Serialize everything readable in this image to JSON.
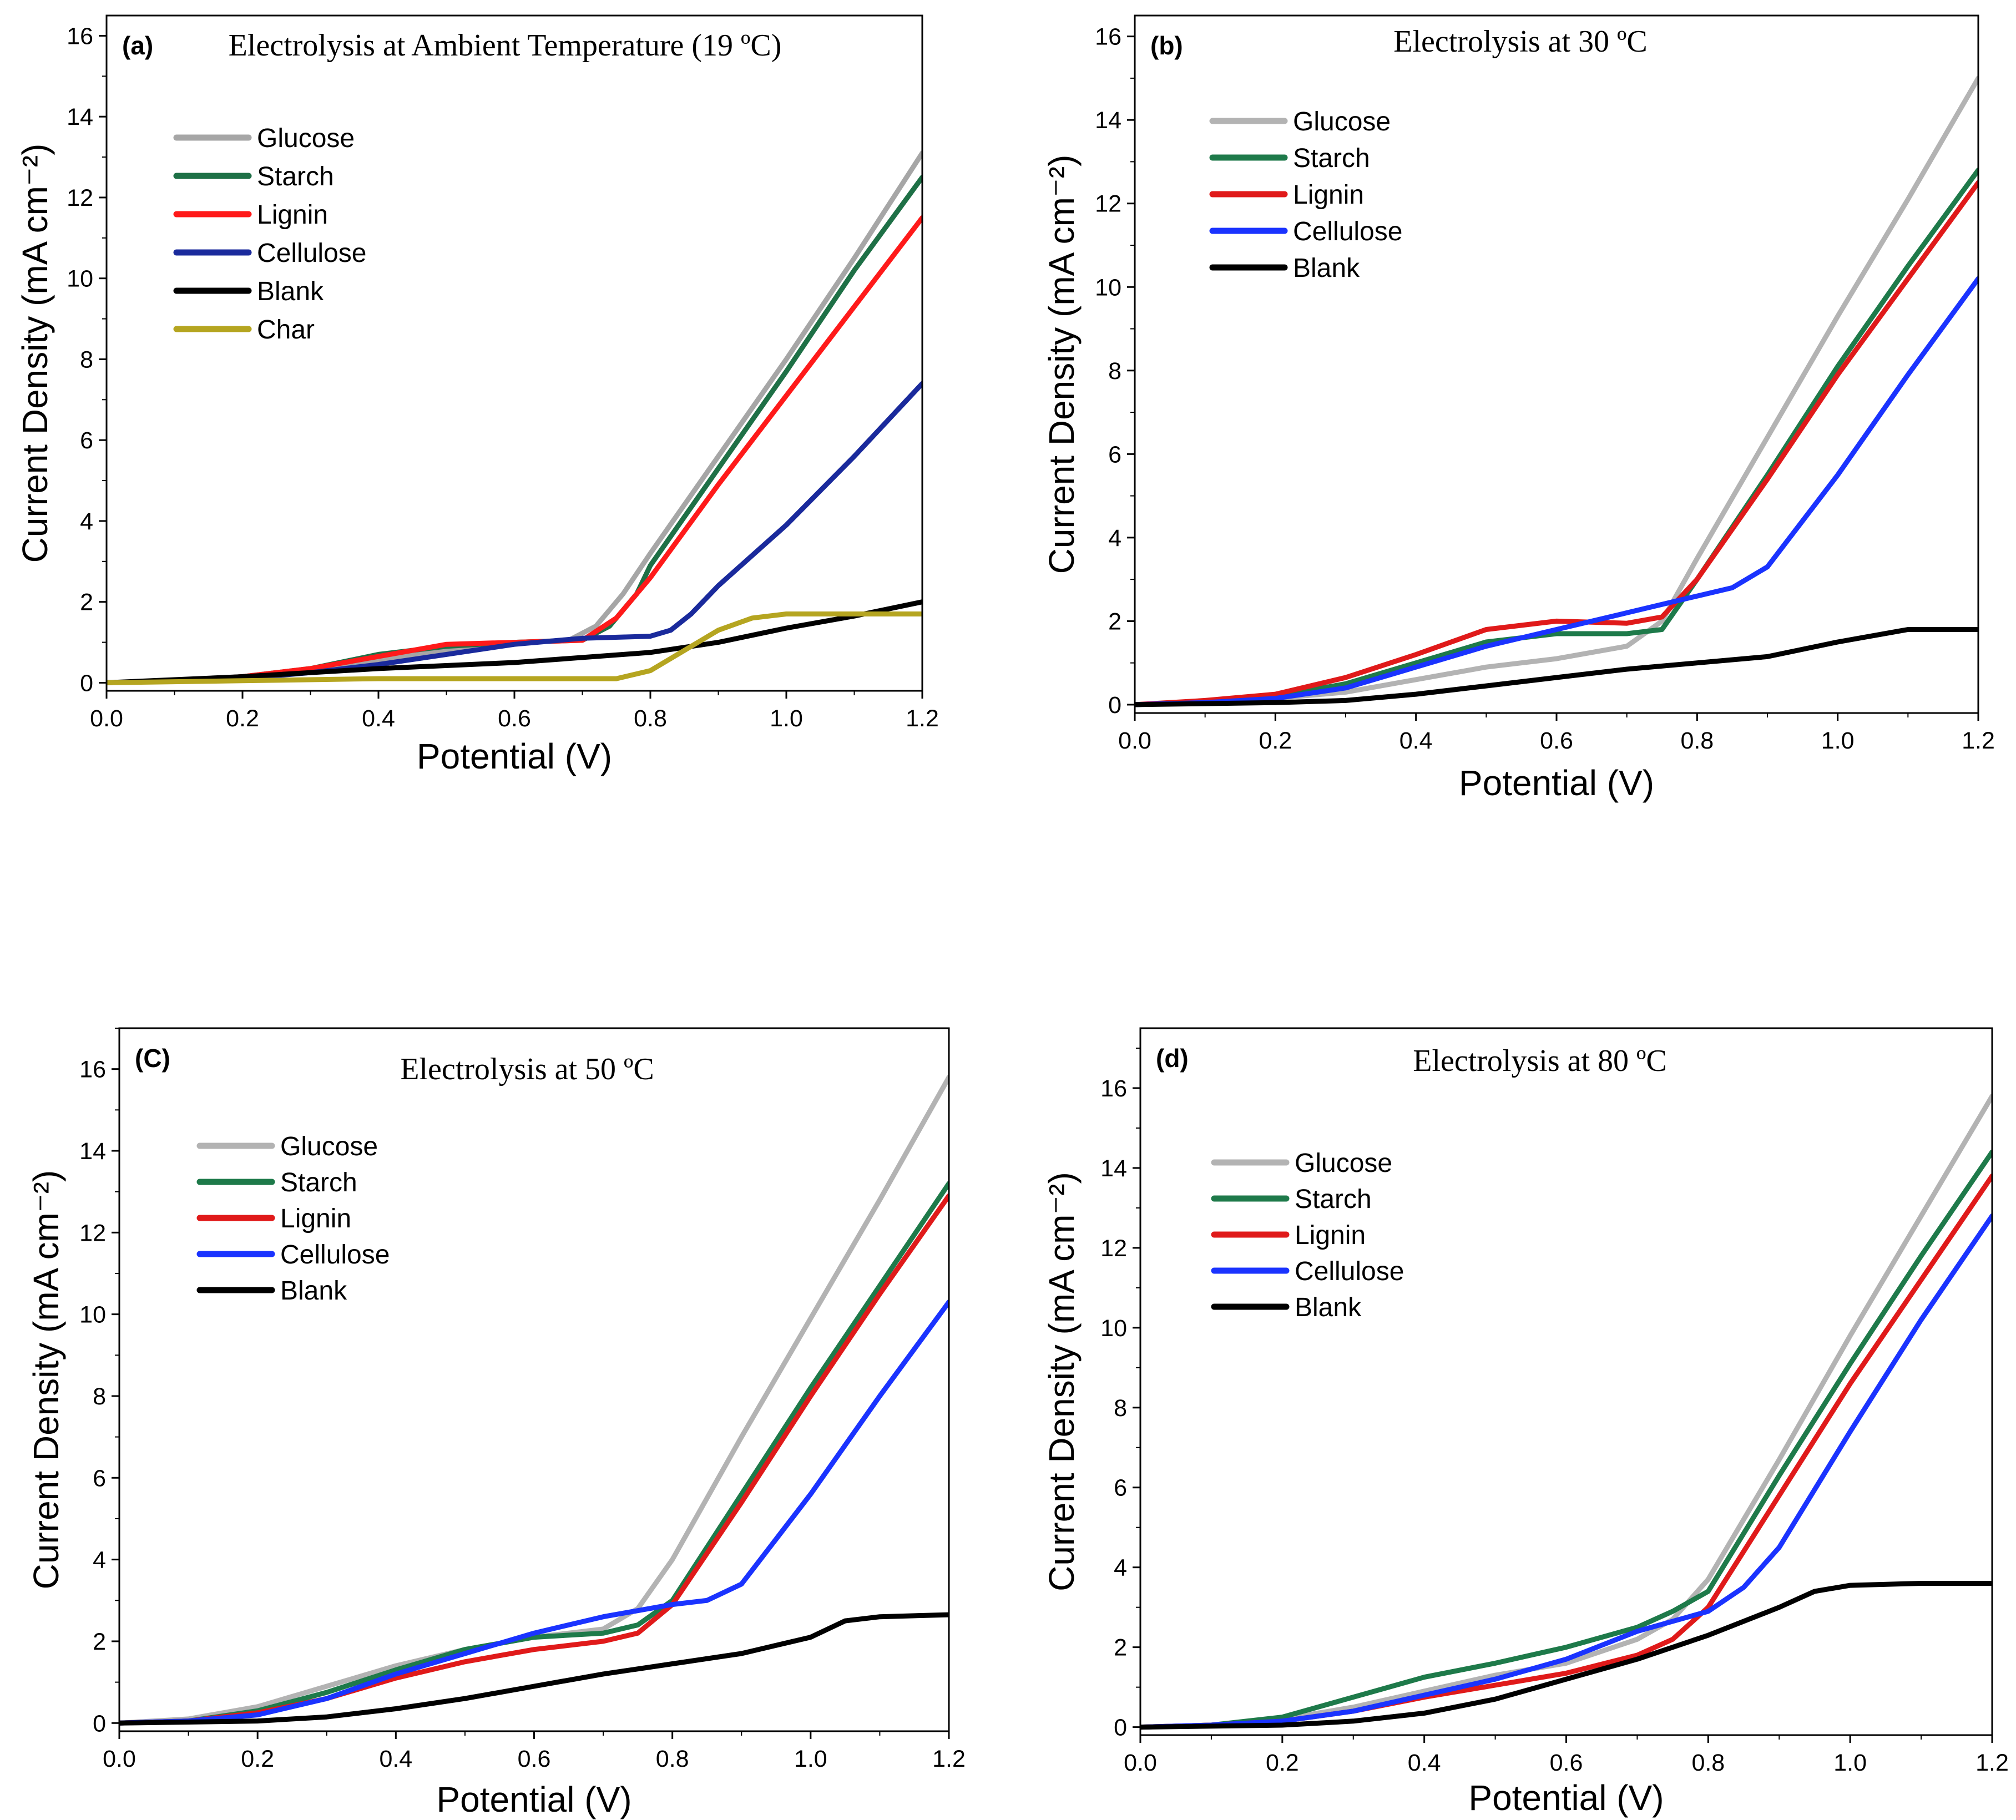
{
  "chart_data": [
    {
      "type": "line",
      "panel_label": "(a)",
      "title": "Electrolysis at Ambient Temperature (19 ºC)",
      "xlabel": "Potential (V)",
      "ylabel": "Current Density (mA cm⁻²)",
      "xlim": [
        0,
        1.2
      ],
      "ylim": [
        -0.2,
        16.5
      ],
      "xticks": [
        "0.0",
        "0.2",
        "0.4",
        "0.6",
        "0.8",
        "1.0",
        "1.2"
      ],
      "yticks": [
        "0",
        "2",
        "4",
        "6",
        "8",
        "10",
        "12",
        "14",
        "16"
      ],
      "legend_position": "top-left",
      "series": [
        {
          "name": "Glucose",
          "color": "#a6a6a6",
          "x": [
            0,
            0.1,
            0.2,
            0.3,
            0.4,
            0.5,
            0.6,
            0.68,
            0.72,
            0.76,
            0.8,
            0.9,
            1.0,
            1.1,
            1.2
          ],
          "y": [
            0,
            0.05,
            0.15,
            0.3,
            0.55,
            0.8,
            1.0,
            1.05,
            1.4,
            2.2,
            3.2,
            5.6,
            8.0,
            10.5,
            13.1
          ]
        },
        {
          "name": "Starch",
          "color": "#1e7046",
          "x": [
            0,
            0.1,
            0.2,
            0.3,
            0.4,
            0.5,
            0.6,
            0.7,
            0.74,
            0.78,
            0.8,
            0.9,
            1.0,
            1.1,
            1.2
          ],
          "y": [
            0,
            0.05,
            0.15,
            0.35,
            0.7,
            0.9,
            1.0,
            1.05,
            1.4,
            2.2,
            2.9,
            5.3,
            7.7,
            10.2,
            12.5
          ]
        },
        {
          "name": "Lignin",
          "color": "#ff1a1a",
          "x": [
            0,
            0.1,
            0.2,
            0.3,
            0.4,
            0.5,
            0.6,
            0.7,
            0.75,
            0.8,
            0.9,
            1.0,
            1.1,
            1.2
          ],
          "y": [
            0,
            0.05,
            0.15,
            0.35,
            0.65,
            0.95,
            1.0,
            1.05,
            1.6,
            2.6,
            4.9,
            7.1,
            9.3,
            11.5
          ]
        },
        {
          "name": "Cellulose",
          "color": "#1a2a9c",
          "x": [
            0,
            0.1,
            0.2,
            0.3,
            0.4,
            0.5,
            0.6,
            0.7,
            0.8,
            0.83,
            0.86,
            0.9,
            1.0,
            1.1,
            1.2
          ],
          "y": [
            0,
            0.05,
            0.1,
            0.25,
            0.45,
            0.7,
            0.95,
            1.1,
            1.15,
            1.3,
            1.7,
            2.4,
            3.9,
            5.6,
            7.4
          ]
        },
        {
          "name": "Blank",
          "color": "#000000",
          "x": [
            0,
            0.2,
            0.4,
            0.6,
            0.8,
            0.9,
            1.0,
            1.1,
            1.2
          ],
          "y": [
            0,
            0.15,
            0.35,
            0.5,
            0.75,
            1.0,
            1.35,
            1.65,
            2.0
          ]
        },
        {
          "name": "Char",
          "color": "#b5a520",
          "x": [
            0,
            0.2,
            0.4,
            0.6,
            0.75,
            0.8,
            0.85,
            0.9,
            0.95,
            1.0,
            1.1,
            1.2
          ],
          "y": [
            0,
            0.05,
            0.1,
            0.1,
            0.1,
            0.3,
            0.8,
            1.3,
            1.6,
            1.7,
            1.7,
            1.7
          ]
        }
      ]
    },
    {
      "type": "line",
      "panel_label": "(b)",
      "title": "Electrolysis at 30 ºC",
      "xlabel": "Potential (V)",
      "ylabel": "Current Density (mA cm⁻²)",
      "xlim": [
        0,
        1.2
      ],
      "ylim": [
        -0.2,
        16.5
      ],
      "xticks": [
        "0.0",
        "0.2",
        "0.4",
        "0.6",
        "0.8",
        "1.0",
        "1.2"
      ],
      "yticks": [
        "0",
        "2",
        "4",
        "6",
        "8",
        "10",
        "12",
        "14",
        "16"
      ],
      "legend_position": "top-left",
      "series": [
        {
          "name": "Glucose",
          "color": "#b3b3b3",
          "x": [
            0,
            0.1,
            0.2,
            0.3,
            0.4,
            0.5,
            0.6,
            0.7,
            0.75,
            0.8,
            0.9,
            1.0,
            1.1,
            1.2
          ],
          "y": [
            0,
            0.05,
            0.15,
            0.3,
            0.6,
            0.9,
            1.1,
            1.4,
            2.0,
            3.5,
            6.4,
            9.3,
            12.1,
            15.0
          ]
        },
        {
          "name": "Starch",
          "color": "#1e7a4a",
          "x": [
            0,
            0.1,
            0.2,
            0.3,
            0.4,
            0.5,
            0.6,
            0.7,
            0.75,
            0.8,
            0.9,
            1.0,
            1.1,
            1.2
          ],
          "y": [
            0,
            0.05,
            0.2,
            0.5,
            1.0,
            1.5,
            1.7,
            1.7,
            1.8,
            3.0,
            5.5,
            8.1,
            10.5,
            12.8
          ]
        },
        {
          "name": "Lignin",
          "color": "#e01a1a",
          "x": [
            0,
            0.1,
            0.2,
            0.3,
            0.4,
            0.5,
            0.6,
            0.7,
            0.75,
            0.8,
            0.9,
            1.0,
            1.1,
            1.2
          ],
          "y": [
            0,
            0.1,
            0.25,
            0.65,
            1.2,
            1.8,
            2.0,
            1.95,
            2.1,
            3.0,
            5.4,
            7.9,
            10.2,
            12.5
          ]
        },
        {
          "name": "Cellulose",
          "color": "#1a33ff",
          "x": [
            0,
            0.1,
            0.2,
            0.3,
            0.4,
            0.5,
            0.6,
            0.7,
            0.8,
            0.85,
            0.9,
            1.0,
            1.1,
            1.2
          ],
          "y": [
            0,
            0.05,
            0.15,
            0.4,
            0.9,
            1.4,
            1.8,
            2.2,
            2.6,
            2.8,
            3.3,
            5.5,
            7.9,
            10.2
          ]
        },
        {
          "name": "Blank",
          "color": "#000000",
          "x": [
            0,
            0.2,
            0.3,
            0.4,
            0.5,
            0.6,
            0.7,
            0.8,
            0.9,
            1.0,
            1.1,
            1.2
          ],
          "y": [
            0,
            0.05,
            0.1,
            0.25,
            0.45,
            0.65,
            0.85,
            1.0,
            1.15,
            1.5,
            1.8,
            1.8
          ]
        }
      ]
    },
    {
      "type": "line",
      "panel_label": "(C)",
      "title": "Electrolysis at 50 ºC",
      "xlabel": "Potential (V)",
      "ylabel": "Current Density (mA cm⁻²)",
      "xlim": [
        0,
        1.2
      ],
      "ylim": [
        -0.2,
        17.0
      ],
      "xticks": [
        "0.0",
        "0.2",
        "0.4",
        "0.6",
        "0.8",
        "1.0",
        "1.2"
      ],
      "yticks": [
        "0",
        "2",
        "4",
        "6",
        "8",
        "10",
        "12",
        "14",
        "16"
      ],
      "legend_position": "top-left",
      "series": [
        {
          "name": "Glucose",
          "color": "#b3b3b3",
          "x": [
            0,
            0.1,
            0.2,
            0.3,
            0.4,
            0.5,
            0.6,
            0.7,
            0.75,
            0.8,
            0.9,
            1.0,
            1.1,
            1.2
          ],
          "y": [
            0,
            0.1,
            0.4,
            0.9,
            1.4,
            1.8,
            2.1,
            2.3,
            2.8,
            4.0,
            7.0,
            9.9,
            12.8,
            15.8
          ]
        },
        {
          "name": "Starch",
          "color": "#1e7a4a",
          "x": [
            0,
            0.1,
            0.2,
            0.3,
            0.4,
            0.5,
            0.6,
            0.7,
            0.75,
            0.8,
            0.9,
            1.0,
            1.1,
            1.2
          ],
          "y": [
            0,
            0.05,
            0.3,
            0.75,
            1.3,
            1.8,
            2.1,
            2.2,
            2.4,
            3.0,
            5.6,
            8.2,
            10.7,
            13.2
          ]
        },
        {
          "name": "Lignin",
          "color": "#e01a1a",
          "x": [
            0,
            0.1,
            0.2,
            0.3,
            0.4,
            0.5,
            0.6,
            0.7,
            0.75,
            0.8,
            0.9,
            1.0,
            1.1,
            1.2
          ],
          "y": [
            0,
            0.05,
            0.25,
            0.6,
            1.1,
            1.5,
            1.8,
            2.0,
            2.2,
            2.9,
            5.4,
            8.0,
            10.5,
            12.9
          ]
        },
        {
          "name": "Cellulose",
          "color": "#1a33ff",
          "x": [
            0,
            0.1,
            0.2,
            0.3,
            0.4,
            0.5,
            0.6,
            0.7,
            0.8,
            0.85,
            0.9,
            1.0,
            1.1,
            1.2
          ],
          "y": [
            0,
            0.05,
            0.2,
            0.6,
            1.2,
            1.7,
            2.2,
            2.6,
            2.9,
            3.0,
            3.4,
            5.6,
            8.0,
            10.3
          ]
        },
        {
          "name": "Blank",
          "color": "#000000",
          "x": [
            0,
            0.2,
            0.3,
            0.4,
            0.5,
            0.6,
            0.7,
            0.8,
            0.9,
            1.0,
            1.05,
            1.1,
            1.2
          ],
          "y": [
            0,
            0.05,
            0.15,
            0.35,
            0.6,
            0.9,
            1.2,
            1.45,
            1.7,
            2.1,
            2.5,
            2.6,
            2.65
          ]
        }
      ]
    },
    {
      "type": "line",
      "panel_label": "(d)",
      "title": "Electrolysis at 80 ºC",
      "xlabel": "Potential (V)",
      "ylabel": "Current Density (mA cm⁻²)",
      "xlim": [
        0,
        1.2
      ],
      "ylim": [
        -0.2,
        17.5
      ],
      "xticks": [
        "0.0",
        "0.2",
        "0.4",
        "0.6",
        "0.8",
        "1.0",
        "1.2"
      ],
      "yticks": [
        "0",
        "2",
        "4",
        "6",
        "8",
        "10",
        "12",
        "14",
        "16"
      ],
      "legend_position": "top-left",
      "series": [
        {
          "name": "Glucose",
          "color": "#b3b3b3",
          "x": [
            0,
            0.1,
            0.2,
            0.3,
            0.4,
            0.5,
            0.6,
            0.7,
            0.75,
            0.8,
            0.9,
            1.0,
            1.1,
            1.2
          ],
          "y": [
            0,
            0.05,
            0.2,
            0.5,
            0.9,
            1.3,
            1.6,
            2.2,
            2.7,
            3.7,
            6.7,
            9.8,
            12.8,
            15.8
          ]
        },
        {
          "name": "Starch",
          "color": "#1e7a4a",
          "x": [
            0,
            0.1,
            0.2,
            0.3,
            0.4,
            0.5,
            0.6,
            0.7,
            0.75,
            0.8,
            0.9,
            1.0,
            1.1,
            1.2
          ],
          "y": [
            0,
            0.05,
            0.25,
            0.75,
            1.25,
            1.6,
            2.0,
            2.5,
            2.9,
            3.4,
            6.3,
            9.1,
            11.8,
            14.4
          ]
        },
        {
          "name": "Lignin",
          "color": "#e01a1a",
          "x": [
            0,
            0.1,
            0.2,
            0.3,
            0.4,
            0.5,
            0.6,
            0.7,
            0.75,
            0.8,
            0.9,
            1.0,
            1.1,
            1.2
          ],
          "y": [
            0,
            0.05,
            0.15,
            0.4,
            0.75,
            1.05,
            1.35,
            1.8,
            2.2,
            3.0,
            5.8,
            8.6,
            11.2,
            13.8
          ]
        },
        {
          "name": "Cellulose",
          "color": "#1a33ff",
          "x": [
            0,
            0.1,
            0.2,
            0.3,
            0.4,
            0.5,
            0.6,
            0.7,
            0.8,
            0.85,
            0.9,
            1.0,
            1.1,
            1.2
          ],
          "y": [
            0,
            0.05,
            0.15,
            0.4,
            0.8,
            1.2,
            1.7,
            2.4,
            2.9,
            3.5,
            4.5,
            7.4,
            10.2,
            12.8
          ]
        },
        {
          "name": "Blank",
          "color": "#000000",
          "x": [
            0,
            0.2,
            0.3,
            0.4,
            0.5,
            0.6,
            0.7,
            0.8,
            0.9,
            0.95,
            1.0,
            1.1,
            1.2
          ],
          "y": [
            0,
            0.05,
            0.15,
            0.35,
            0.7,
            1.2,
            1.7,
            2.3,
            3.0,
            3.4,
            3.55,
            3.6,
            3.6
          ]
        }
      ]
    }
  ]
}
